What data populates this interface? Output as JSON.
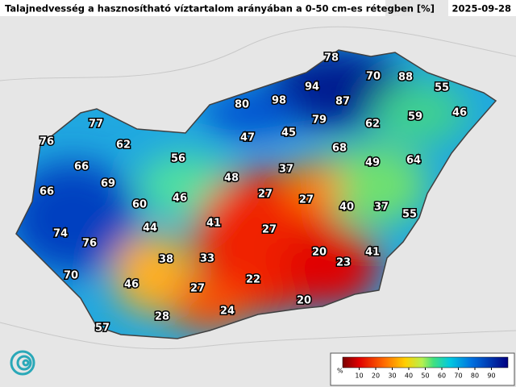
{
  "title": "Talajnedvesség a hasznosítható víztartalom arányában a 0-50 cm-es rétegben [%]",
  "date": "2025-09-28",
  "labels": [
    78,
    70,
    88,
    55,
    94,
    80,
    98,
    87,
    59,
    46,
    77,
    79,
    62,
    76,
    62,
    47,
    45,
    68,
    66,
    56,
    37,
    49,
    64,
    69,
    48,
    66,
    60,
    46,
    27,
    27,
    40,
    37,
    55,
    41,
    44,
    27,
    74,
    76,
    20,
    41,
    23,
    38,
    33,
    70,
    46,
    22,
    27,
    20,
    24,
    28,
    57
  ],
  "colorbar": {
    "unit": "%",
    "lim": [
      0,
      100
    ],
    "ticks": [
      10,
      20,
      30,
      40,
      50,
      60,
      70,
      80,
      90
    ]
  }
}
